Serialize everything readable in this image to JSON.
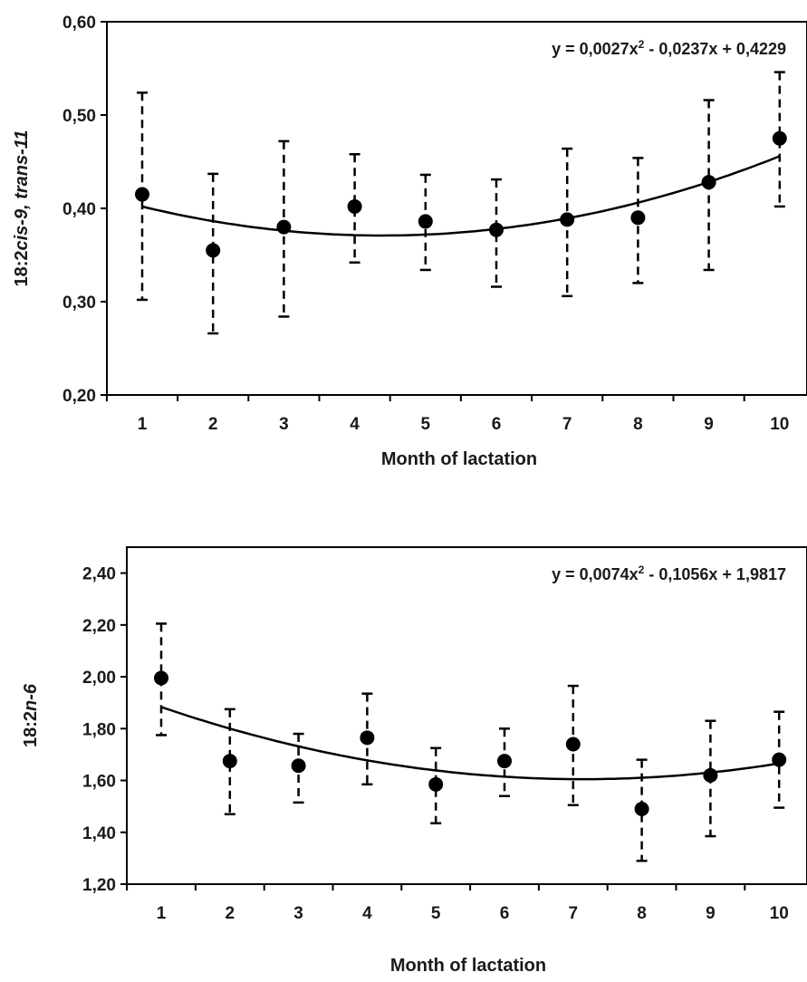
{
  "chart_data": [
    {
      "type": "scatter",
      "xlabel": "Month of lactation",
      "ylabel_parts": [
        "18:2",
        "cis-9,",
        " trans-11"
      ],
      "ylim": [
        0.2,
        0.6
      ],
      "yticks": [
        "0,20",
        "0,30",
        "0,40",
        "0,50",
        "0,60"
      ],
      "ytick_values": [
        0.2,
        0.3,
        0.4,
        0.5,
        0.6
      ],
      "xticks": [
        "1",
        "2",
        "3",
        "4",
        "5",
        "6",
        "7",
        "8",
        "9",
        "10"
      ],
      "equation": {
        "prefix": "y = 0,0027x",
        "sup": "2",
        "suffix": " - 0,0237x + 0,4229"
      },
      "trend": {
        "a": 0.0027,
        "b": -0.0237,
        "c": 0.4229
      },
      "x": [
        1,
        2,
        3,
        4,
        5,
        6,
        7,
        8,
        9,
        10
      ],
      "y": [
        0.415,
        0.355,
        0.38,
        0.402,
        0.386,
        0.377,
        0.388,
        0.39,
        0.428,
        0.475
      ],
      "err_low": [
        0.302,
        0.266,
        0.284,
        0.342,
        0.334,
        0.316,
        0.306,
        0.32,
        0.334,
        0.402
      ],
      "err_high": [
        0.524,
        0.437,
        0.472,
        0.458,
        0.436,
        0.431,
        0.464,
        0.454,
        0.516,
        0.546
      ],
      "grid": false
    },
    {
      "type": "scatter",
      "xlabel": "Month of lactation",
      "ylabel_parts": [
        "18:2",
        "n-6",
        ""
      ],
      "ylim": [
        1.2,
        2.5
      ],
      "yticks": [
        "1,20",
        "1,40",
        "1,60",
        "1,80",
        "2,00",
        "2,20",
        "2,40"
      ],
      "ytick_values": [
        1.2,
        1.4,
        1.6,
        1.8,
        2.0,
        2.2,
        2.4
      ],
      "xticks": [
        "1",
        "2",
        "3",
        "4",
        "5",
        "6",
        "7",
        "8",
        "9",
        "10"
      ],
      "equation": {
        "prefix": "y = 0,0074x",
        "sup": "2",
        "suffix": " - 0,1056x + 1,9817"
      },
      "trend": {
        "a": 0.0074,
        "b": -0.1056,
        "c": 1.9817
      },
      "x": [
        1,
        2,
        3,
        4,
        5,
        6,
        7,
        8,
        9,
        10
      ],
      "y": [
        1.995,
        1.675,
        1.657,
        1.765,
        1.585,
        1.675,
        1.74,
        1.49,
        1.62,
        1.68
      ],
      "err_low": [
        1.775,
        1.47,
        1.515,
        1.585,
        1.435,
        1.54,
        1.505,
        1.29,
        1.385,
        1.495
      ],
      "err_high": [
        2.205,
        1.875,
        1.78,
        1.935,
        1.725,
        1.8,
        1.965,
        1.68,
        1.83,
        1.865
      ],
      "grid": false
    }
  ]
}
